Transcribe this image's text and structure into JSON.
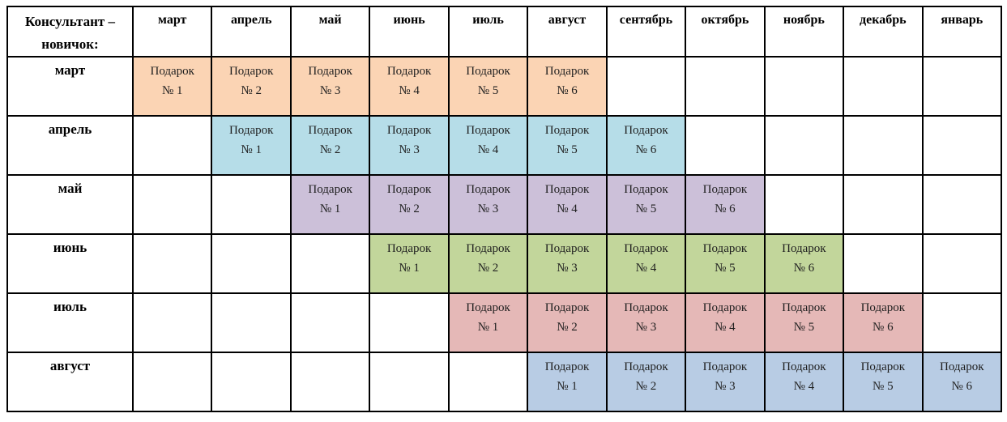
{
  "table": {
    "corner_label": "Консультант – новичок:",
    "month_columns": [
      "март",
      "апрель",
      "май",
      "июнь",
      "июль",
      "август",
      "сентябрь",
      "октябрь",
      "ноябрь",
      "декабрь",
      "январь"
    ],
    "rows": [
      {
        "label": "март",
        "start_index": 0,
        "color": "#FBD4B4",
        "gifts": [
          {
            "line1": "Подарок",
            "line2": "№ 1"
          },
          {
            "line1": "Подарок",
            "line2": "№ 2"
          },
          {
            "line1": "Подарок",
            "line2": "№ 3"
          },
          {
            "line1": "Подарок",
            "line2": "№ 4"
          },
          {
            "line1": "Подарок",
            "line2": "№ 5"
          },
          {
            "line1": "Подарок",
            "line2": "№ 6"
          }
        ]
      },
      {
        "label": "апрель",
        "start_index": 1,
        "color": "#B6DDE8",
        "gifts": [
          {
            "line1": "Подарок",
            "line2": "№ 1"
          },
          {
            "line1": "Подарок",
            "line2": "№ 2"
          },
          {
            "line1": "Подарок",
            "line2": "№ 3"
          },
          {
            "line1": "Подарок",
            "line2": "№ 4"
          },
          {
            "line1": "Подарок",
            "line2": "№ 5"
          },
          {
            "line1": "Подарок",
            "line2": "№ 6"
          }
        ]
      },
      {
        "label": "май",
        "start_index": 2,
        "color": "#CCC0D9",
        "gifts": [
          {
            "line1": "Подарок",
            "line2": "№ 1"
          },
          {
            "line1": "Подарок",
            "line2": "№ 2"
          },
          {
            "line1": "Подарок",
            "line2": "№ 3"
          },
          {
            "line1": "Подарок",
            "line2": "№ 4"
          },
          {
            "line1": "Подарок",
            "line2": "№ 5"
          },
          {
            "line1": "Подарок",
            "line2": "№ 6"
          }
        ]
      },
      {
        "label": "июнь",
        "start_index": 3,
        "color": "#C2D69B",
        "gifts": [
          {
            "line1": "Подарок",
            "line2": "№ 1"
          },
          {
            "line1": "Подарок",
            "line2": "№ 2"
          },
          {
            "line1": "Подарок",
            "line2": "№ 3"
          },
          {
            "line1": "Подарок",
            "line2": "№ 4"
          },
          {
            "line1": "Подарок",
            "line2": "№ 5"
          },
          {
            "line1": "Подарок",
            "line2": "№ 6"
          }
        ]
      },
      {
        "label": "июль",
        "start_index": 4,
        "color": "#E5B8B7",
        "gifts": [
          {
            "line1": "Подарок",
            "line2": "№ 1"
          },
          {
            "line1": "Подарок",
            "line2": "№ 2"
          },
          {
            "line1": "Подарок",
            "line2": "№ 3"
          },
          {
            "line1": "Подарок",
            "line2": "№ 4"
          },
          {
            "line1": "Подарок",
            "line2": "№ 5"
          },
          {
            "line1": "Подарок",
            "line2": "№ 6"
          }
        ]
      },
      {
        "label": "август",
        "start_index": 5,
        "color": "#B8CCE4",
        "gifts": [
          {
            "line1": "Подарок",
            "line2": "№ 1"
          },
          {
            "line1": "Подарок",
            "line2": "№ 2"
          },
          {
            "line1": "Подарок",
            "line2": "№ 3"
          },
          {
            "line1": "Подарок",
            "line2": "№ 4"
          },
          {
            "line1": "Подарок",
            "line2": "№ 5"
          },
          {
            "line1": "Подарок",
            "line2": "№ 6"
          }
        ]
      }
    ]
  }
}
